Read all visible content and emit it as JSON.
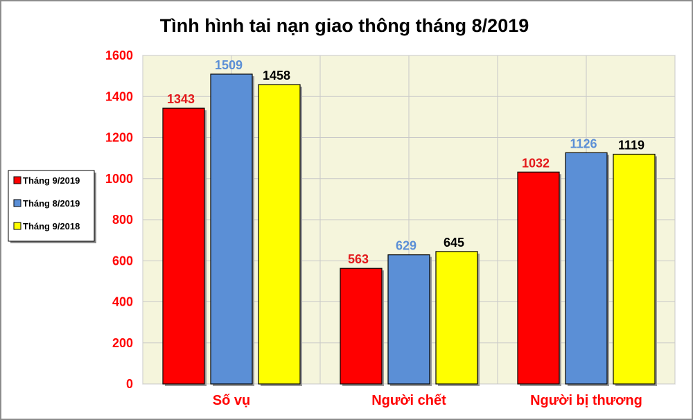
{
  "chart_data": {
    "type": "bar",
    "title": "Tình hình tai nạn giao thông tháng 8/2019",
    "categories": [
      "Số vụ",
      "Người chết",
      "Người bị thương"
    ],
    "series": [
      {
        "name": "Tháng 9/2019",
        "values": [
          1343,
          563,
          1032
        ],
        "color": "#ff0000",
        "label_color": "#e31a1c"
      },
      {
        "name": "Tháng 8/2019",
        "values": [
          1509,
          629,
          1126
        ],
        "color": "#5b8fd6",
        "label_color": "#5b8fd6"
      },
      {
        "name": "Tháng 9/2018",
        "values": [
          1458,
          645,
          1119
        ],
        "color": "#ffff00",
        "label_color": "#000000"
      }
    ],
    "ylim": [
      0,
      1600
    ],
    "yticks": [
      0,
      200,
      400,
      600,
      800,
      1000,
      1200,
      1400,
      1600
    ],
    "grid": true,
    "legend_position": "left"
  }
}
